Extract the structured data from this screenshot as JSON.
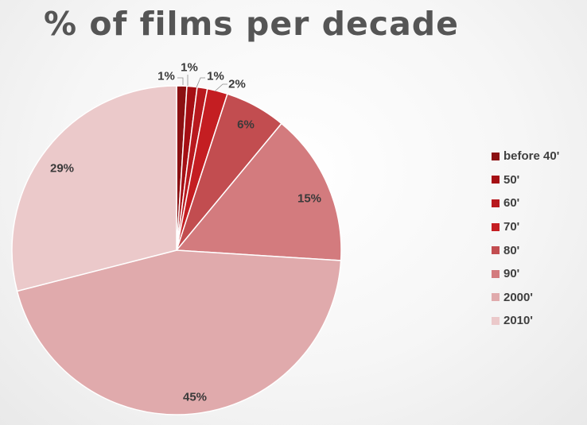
{
  "title": "% of films per decade",
  "chart_data": {
    "type": "pie",
    "categories": [
      "before 40'",
      "50'",
      "60'",
      "70'",
      "80'",
      "90'",
      "2000'",
      "2010'"
    ],
    "values": [
      1,
      1,
      1,
      2,
      6,
      15,
      45,
      29
    ],
    "labels": [
      "1%",
      "1%",
      "1%",
      "2%",
      "6%",
      "15%",
      "45%",
      "29%"
    ],
    "colors": [
      "#8b1012",
      "#a50f14",
      "#b8191e",
      "#c41e22",
      "#c24d50",
      "#d37b7e",
      "#e0aaac",
      "#ebc9ca"
    ],
    "legend_position": "right"
  }
}
